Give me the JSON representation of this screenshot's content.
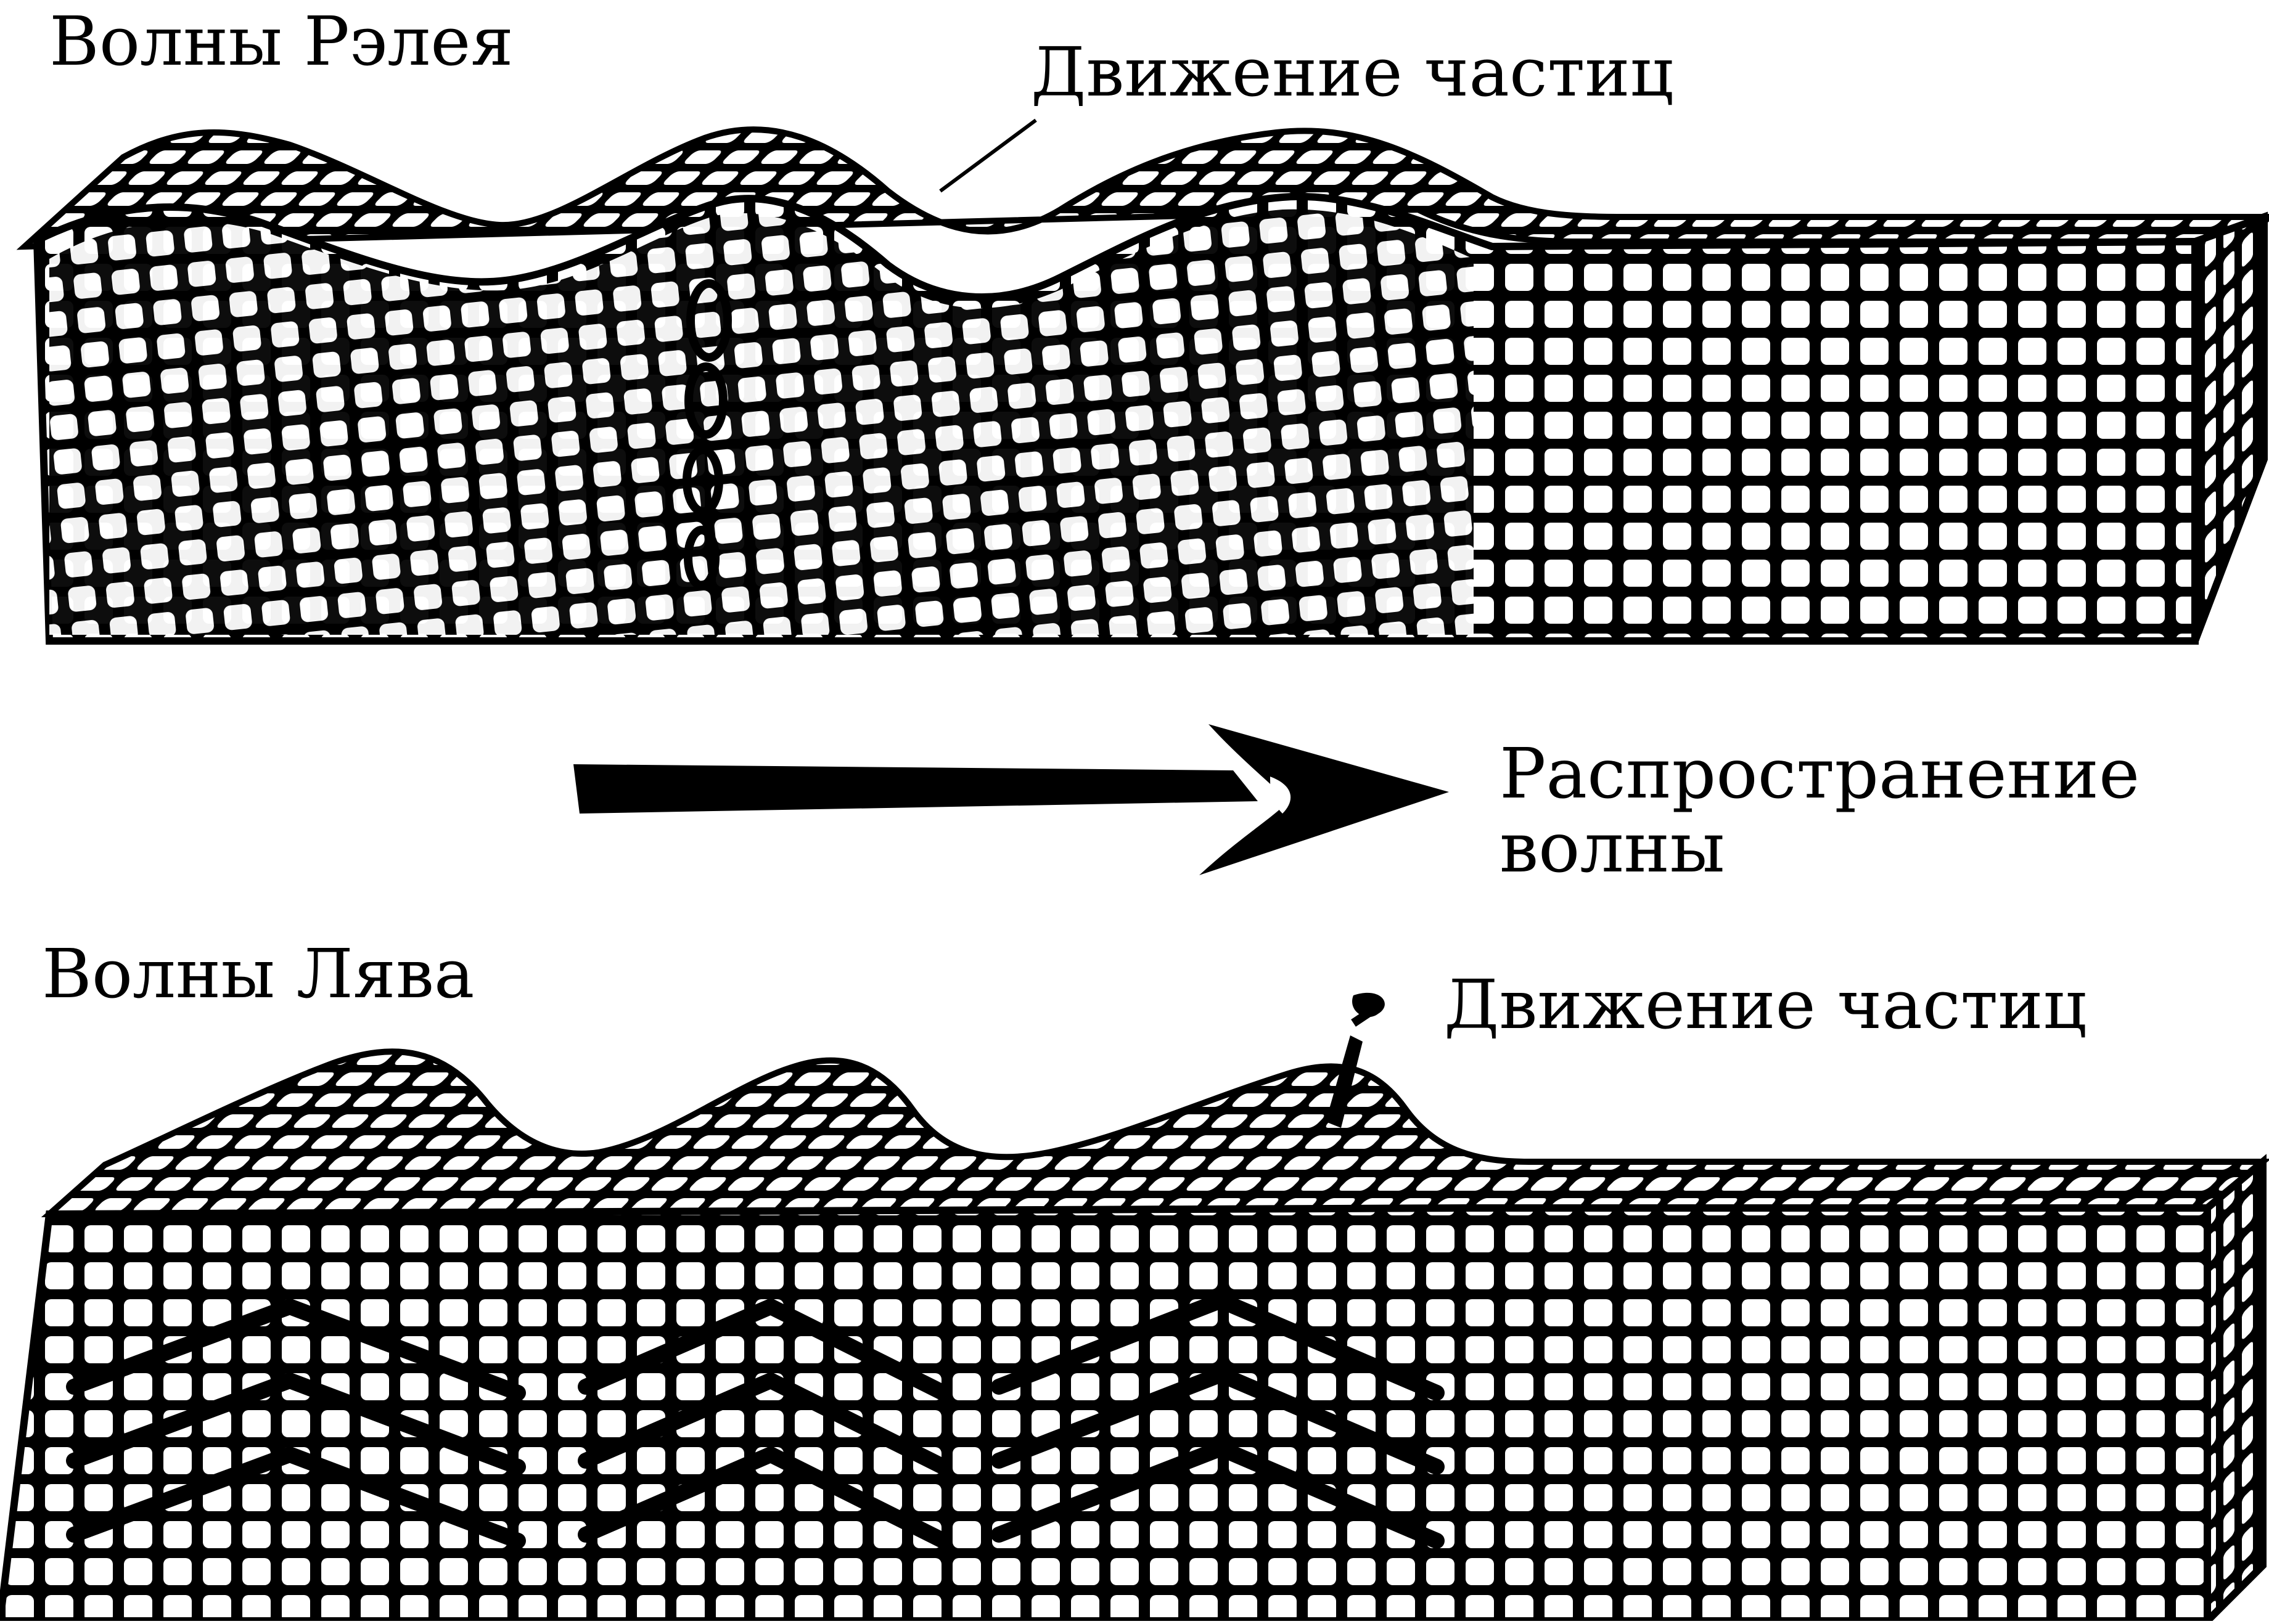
{
  "rayleigh": {
    "title": "Волны Рэлея",
    "particle_motion_label": "Движение частиц"
  },
  "propagation": {
    "line1": "Распространение",
    "line2": "волны"
  },
  "love": {
    "title": "Волны Лява",
    "particle_motion_label": "Движение частиц"
  },
  "colors": {
    "ink": "#000000",
    "paper": "#ffffff"
  }
}
